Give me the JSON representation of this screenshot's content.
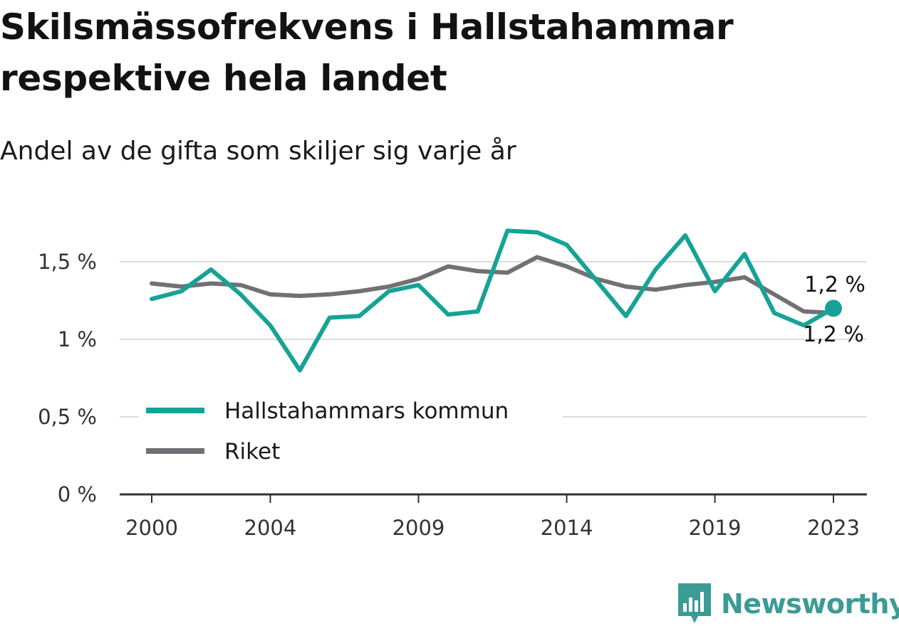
{
  "title": "Skilsmässofrekvens i Hallstahammar respektive hela landet",
  "subtitle": "Andel av de gifta som skiljer sig varje år",
  "brand": "Newsworthy",
  "colors": {
    "hallstahammar": "#16a396",
    "riket": "#707075",
    "grid": "#dddddd",
    "axis": "#333333"
  },
  "chart_data": {
    "type": "line",
    "x": [
      2000,
      2001,
      2002,
      2003,
      2004,
      2005,
      2006,
      2007,
      2008,
      2009,
      2010,
      2011,
      2012,
      2013,
      2014,
      2015,
      2016,
      2017,
      2018,
      2019,
      2020,
      2021,
      2022,
      2023
    ],
    "x_ticks": [
      2000,
      2004,
      2009,
      2014,
      2019,
      2023
    ],
    "x_tick_labels": [
      "2000",
      "2004",
      "2009",
      "2014",
      "2019",
      "2023"
    ],
    "y_ticks": [
      0,
      0.5,
      1,
      1.5
    ],
    "y_tick_labels": [
      "0 %",
      "0,5 %",
      "1 %",
      "1,5 %"
    ],
    "ylim": [
      0,
      1.7
    ],
    "grid": true,
    "legend_position": "bottom-left",
    "series": [
      {
        "name": "Hallstahammars kommun",
        "color_key": "hallstahammar",
        "values": [
          1.26,
          1.31,
          1.45,
          1.29,
          1.09,
          0.8,
          1.14,
          1.15,
          1.31,
          1.35,
          1.16,
          1.18,
          1.7,
          1.69,
          1.61,
          1.38,
          1.15,
          1.45,
          1.67,
          1.31,
          1.55,
          1.17,
          1.09,
          1.2
        ],
        "end_label": "1,2 %",
        "end_marker": true
      },
      {
        "name": "Riket",
        "color_key": "riket",
        "values": [
          1.36,
          1.34,
          1.36,
          1.35,
          1.29,
          1.28,
          1.29,
          1.31,
          1.34,
          1.39,
          1.47,
          1.44,
          1.43,
          1.53,
          1.47,
          1.39,
          1.34,
          1.32,
          1.35,
          1.37,
          1.4,
          1.29,
          1.18,
          1.17
        ],
        "end_label": "1,2 %",
        "end_marker": false
      }
    ]
  }
}
